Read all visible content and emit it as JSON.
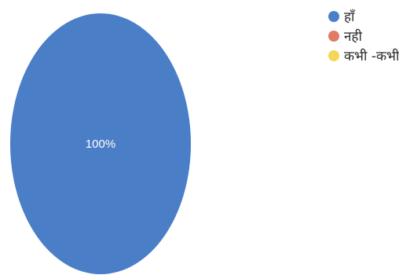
{
  "chart_data": {
    "type": "pie",
    "title": "",
    "categories": [
      "हाँ",
      "नही",
      "कभी -कभी"
    ],
    "values": [
      100,
      0,
      0
    ],
    "colors": [
      "#4a7ec7",
      "#e07b64",
      "#f4d65a"
    ],
    "data_labels": [
      "100%",
      "",
      ""
    ],
    "legend": {
      "placement": "top-right",
      "entries": [
        "हाँ",
        "नही",
        "कभी -कभी"
      ]
    }
  }
}
